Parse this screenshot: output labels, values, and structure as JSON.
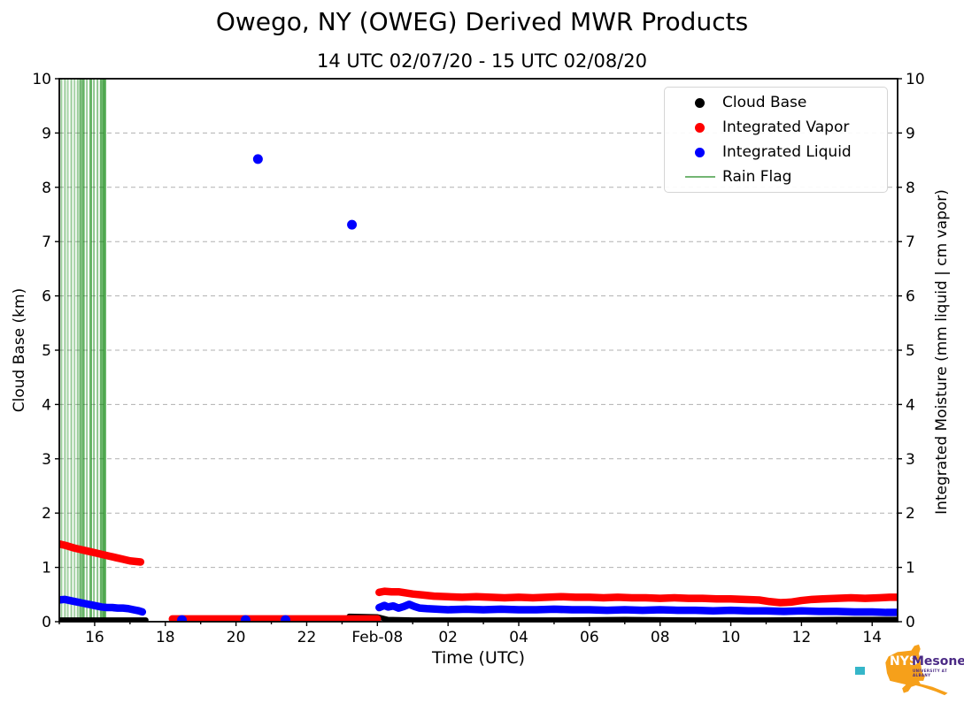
{
  "chart_data": {
    "type": "line",
    "title": "Owego, NY (OWEG) Derived MWR Products",
    "subtitle": "14 UTC 02/07/20 - 15 UTC 02/08/20",
    "xlabel": "Time (UTC)",
    "ylabel_left": "Cloud Base (km)",
    "ylabel_right": "Integrated Moisture (mm liquid | cm vapor)",
    "x_unit": "hours since 2020-02-07 00:00 UTC",
    "x_range": [
      15.0,
      38.72
    ],
    "y_range": [
      0,
      10
    ],
    "grid": {
      "axis": "y",
      "style": "dashed",
      "color": "#b0b0b0"
    },
    "x_ticks": [
      {
        "value": 16,
        "label": "16"
      },
      {
        "value": 18,
        "label": "18"
      },
      {
        "value": 20,
        "label": "20"
      },
      {
        "value": 22,
        "label": "22"
      },
      {
        "value": 24,
        "label": "Feb-08"
      },
      {
        "value": 26,
        "label": "02"
      },
      {
        "value": 28,
        "label": "04"
      },
      {
        "value": 30,
        "label": "06"
      },
      {
        "value": 32,
        "label": "08"
      },
      {
        "value": 34,
        "label": "10"
      },
      {
        "value": 36,
        "label": "12"
      },
      {
        "value": 38,
        "label": "14"
      }
    ],
    "x_minor_ticks": [
      15,
      17,
      19,
      21,
      23,
      25,
      27,
      29,
      31,
      33,
      35,
      37
    ],
    "y_ticks": [
      {
        "value": 0,
        "label": "0"
      },
      {
        "value": 1,
        "label": "1"
      },
      {
        "value": 2,
        "label": "2"
      },
      {
        "value": 3,
        "label": "3"
      },
      {
        "value": 4,
        "label": "4"
      },
      {
        "value": 5,
        "label": "5"
      },
      {
        "value": 6,
        "label": "6"
      },
      {
        "value": 7,
        "label": "7"
      },
      {
        "value": 8,
        "label": "8"
      },
      {
        "value": 9,
        "label": "9"
      },
      {
        "value": 10,
        "label": "10"
      }
    ],
    "legend": {
      "position": "upper right",
      "items": [
        {
          "label": "Cloud Base",
          "marker": "dot",
          "color": "#000000"
        },
        {
          "label": "Integrated Vapor",
          "marker": "dot",
          "color": "#ff0000"
        },
        {
          "label": "Integrated Liquid",
          "marker": "dot",
          "color": "#0000ff"
        },
        {
          "label": "Rain Flag",
          "marker": "line",
          "color": "#73b573"
        }
      ]
    },
    "series": [
      {
        "name": "Cloud Base",
        "color": "#000000",
        "width": 6,
        "segments": [
          [
            [
              15.0,
              0.03
            ],
            [
              17.45,
              0.03
            ]
          ],
          [
            [
              23.2,
              0.1
            ],
            [
              24.0,
              0.09
            ],
            [
              24.3,
              0.04
            ],
            [
              25.0,
              0.03
            ],
            [
              27.0,
              0.03
            ],
            [
              29.0,
              0.03
            ],
            [
              31.0,
              0.04
            ],
            [
              33.0,
              0.03
            ],
            [
              35.0,
              0.03
            ],
            [
              37.0,
              0.04
            ],
            [
              38.72,
              0.04
            ]
          ]
        ]
      },
      {
        "name": "Integrated Vapor",
        "color": "#ff0000",
        "width": 8.5,
        "segments": [
          [
            [
              15.0,
              1.43
            ],
            [
              15.2,
              1.4
            ],
            [
              15.4,
              1.36
            ],
            [
              15.6,
              1.33
            ],
            [
              15.8,
              1.3
            ],
            [
              16.0,
              1.27
            ],
            [
              16.2,
              1.24
            ],
            [
              16.4,
              1.21
            ],
            [
              16.6,
              1.18
            ],
            [
              16.8,
              1.15
            ],
            [
              17.0,
              1.12
            ],
            [
              17.15,
              1.11
            ],
            [
              17.3,
              1.1
            ]
          ],
          [
            [
              18.2,
              0.05
            ],
            [
              24.0,
              0.05
            ]
          ],
          [
            [
              24.05,
              0.54
            ],
            [
              24.2,
              0.56
            ],
            [
              24.4,
              0.55
            ],
            [
              24.6,
              0.55
            ],
            [
              24.8,
              0.53
            ],
            [
              25.0,
              0.51
            ],
            [
              25.3,
              0.49
            ],
            [
              25.6,
              0.47
            ],
            [
              26.0,
              0.46
            ],
            [
              26.4,
              0.45
            ],
            [
              26.8,
              0.46
            ],
            [
              27.2,
              0.45
            ],
            [
              27.6,
              0.44
            ],
            [
              28.0,
              0.45
            ],
            [
              28.4,
              0.44
            ],
            [
              28.8,
              0.45
            ],
            [
              29.2,
              0.46
            ],
            [
              29.6,
              0.45
            ],
            [
              30.0,
              0.45
            ],
            [
              30.4,
              0.44
            ],
            [
              30.8,
              0.45
            ],
            [
              31.2,
              0.44
            ],
            [
              31.6,
              0.44
            ],
            [
              32.0,
              0.43
            ],
            [
              32.4,
              0.44
            ],
            [
              32.8,
              0.43
            ],
            [
              33.2,
              0.43
            ],
            [
              33.6,
              0.42
            ],
            [
              34.0,
              0.42
            ],
            [
              34.4,
              0.41
            ],
            [
              34.8,
              0.4
            ],
            [
              35.1,
              0.37
            ],
            [
              35.4,
              0.35
            ],
            [
              35.7,
              0.36
            ],
            [
              36.0,
              0.39
            ],
            [
              36.3,
              0.41
            ],
            [
              36.6,
              0.42
            ],
            [
              37.0,
              0.43
            ],
            [
              37.4,
              0.44
            ],
            [
              37.8,
              0.43
            ],
            [
              38.2,
              0.44
            ],
            [
              38.5,
              0.45
            ],
            [
              38.72,
              0.45
            ]
          ]
        ]
      },
      {
        "name": "Integrated Liquid",
        "color": "#0000ff",
        "width": 8.5,
        "point_radius": 5.5,
        "points": [
          [
            18.47,
            0.03
          ],
          [
            20.27,
            0.03
          ],
          [
            21.4,
            0.03
          ],
          [
            20.62,
            8.52
          ],
          [
            23.28,
            7.31
          ]
        ],
        "segments": [
          [
            [
              15.0,
              0.4
            ],
            [
              15.15,
              0.41
            ],
            [
              15.3,
              0.39
            ],
            [
              15.45,
              0.37
            ],
            [
              15.6,
              0.35
            ],
            [
              15.75,
              0.33
            ],
            [
              15.9,
              0.31
            ],
            [
              16.05,
              0.29
            ],
            [
              16.2,
              0.27
            ],
            [
              16.35,
              0.26
            ],
            [
              16.5,
              0.26
            ],
            [
              16.65,
              0.25
            ],
            [
              16.8,
              0.25
            ],
            [
              16.95,
              0.24
            ],
            [
              17.1,
              0.22
            ],
            [
              17.25,
              0.2
            ],
            [
              17.35,
              0.18
            ]
          ],
          [
            [
              24.05,
              0.26
            ],
            [
              24.2,
              0.3
            ],
            [
              24.3,
              0.27
            ],
            [
              24.45,
              0.29
            ],
            [
              24.6,
              0.25
            ],
            [
              24.75,
              0.28
            ],
            [
              24.9,
              0.32
            ],
            [
              25.05,
              0.28
            ],
            [
              25.2,
              0.25
            ],
            [
              25.4,
              0.24
            ],
            [
              25.7,
              0.23
            ],
            [
              26.0,
              0.22
            ],
            [
              26.5,
              0.23
            ],
            [
              27.0,
              0.22
            ],
            [
              27.5,
              0.23
            ],
            [
              28.0,
              0.22
            ],
            [
              28.5,
              0.22
            ],
            [
              29.0,
              0.23
            ],
            [
              29.5,
              0.22
            ],
            [
              30.0,
              0.22
            ],
            [
              30.5,
              0.21
            ],
            [
              31.0,
              0.22
            ],
            [
              31.5,
              0.21
            ],
            [
              32.0,
              0.22
            ],
            [
              32.5,
              0.21
            ],
            [
              33.0,
              0.21
            ],
            [
              33.5,
              0.2
            ],
            [
              34.0,
              0.21
            ],
            [
              34.5,
              0.2
            ],
            [
              35.0,
              0.2
            ],
            [
              35.5,
              0.19
            ],
            [
              36.0,
              0.2
            ],
            [
              36.5,
              0.19
            ],
            [
              37.0,
              0.19
            ],
            [
              37.5,
              0.18
            ],
            [
              38.0,
              0.18
            ],
            [
              38.4,
              0.17
            ],
            [
              38.72,
              0.17
            ]
          ]
        ]
      }
    ],
    "rain_flags": {
      "color": "#008000",
      "lines": [
        [
          15.06,
          2,
          0.4
        ],
        [
          15.16,
          2,
          0.4
        ],
        [
          15.24,
          2,
          0.35
        ],
        [
          15.34,
          2,
          0.4
        ],
        [
          15.43,
          2,
          0.35
        ],
        [
          15.52,
          2,
          0.4
        ],
        [
          15.6,
          3,
          0.55
        ],
        [
          15.68,
          3,
          0.6
        ],
        [
          15.78,
          2,
          0.4
        ],
        [
          15.89,
          3,
          0.6
        ],
        [
          15.98,
          2,
          0.45
        ],
        [
          16.08,
          2,
          0.45
        ],
        [
          16.21,
          5,
          0.6
        ],
        [
          16.29,
          3,
          0.6
        ]
      ]
    }
  },
  "logo": {
    "org": "NYS",
    "name": "Mesonet",
    "tagline": "UNIVERSITY AT ALBANY",
    "state_color": "#f6a01a",
    "org_text_color": "#ffffff",
    "name_text_color": "#4b2a85",
    "accent_color": "#35b6c9"
  }
}
